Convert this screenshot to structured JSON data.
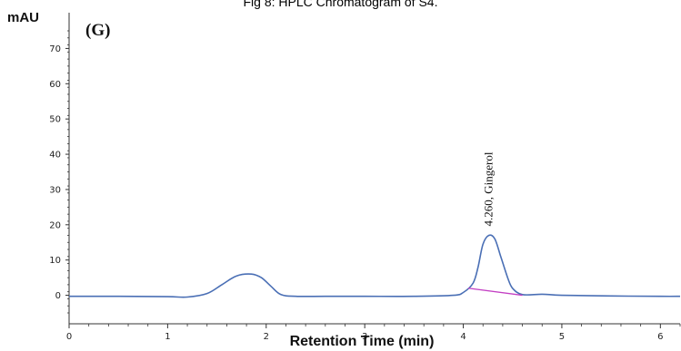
{
  "figure": {
    "caption": "Fig 8: HPLC Chromatogram of S4."
  },
  "chart_data": {
    "type": "line",
    "panel_label": "(G)",
    "xlabel": "Retention Time (min)",
    "ylabel": "mAU",
    "xlim": [
      0,
      6.2
    ],
    "ylim": [
      -5,
      75
    ],
    "x_ticks": [
      0,
      1,
      2,
      3,
      4,
      5,
      6
    ],
    "y_ticks": [
      0,
      10,
      20,
      30,
      40,
      50,
      60,
      70
    ],
    "grid": false,
    "series": [
      {
        "color": "#4a6fb5",
        "x": [
          0,
          0.5,
          1.0,
          1.2,
          1.4,
          1.55,
          1.7,
          1.85,
          1.95,
          2.05,
          2.15,
          2.3,
          2.6,
          3.0,
          3.5,
          3.9,
          4.0,
          4.1,
          4.15,
          4.2,
          4.26,
          4.32,
          4.38,
          4.45,
          4.5,
          4.6,
          4.8,
          5.0,
          5.5,
          6.0,
          6.2
        ],
        "y": [
          -0.3,
          -0.3,
          -0.4,
          -0.5,
          0.5,
          3.0,
          5.5,
          6.0,
          5.0,
          2.5,
          0.2,
          -0.3,
          -0.3,
          -0.3,
          -0.3,
          0.0,
          0.8,
          3.5,
          8.0,
          14.5,
          17.0,
          16.0,
          11.0,
          5.0,
          2.0,
          0.2,
          0.3,
          0.0,
          -0.2,
          -0.3,
          -0.3
        ]
      }
    ],
    "baseline": {
      "color": "#c33fc3",
      "x": [
        4.05,
        4.6
      ],
      "y": [
        2.0,
        0.0
      ]
    },
    "annotations": [
      {
        "x": 4.26,
        "y": 17.0,
        "text": "4.260, Gingerol"
      }
    ],
    "axis_color": "#333333"
  }
}
